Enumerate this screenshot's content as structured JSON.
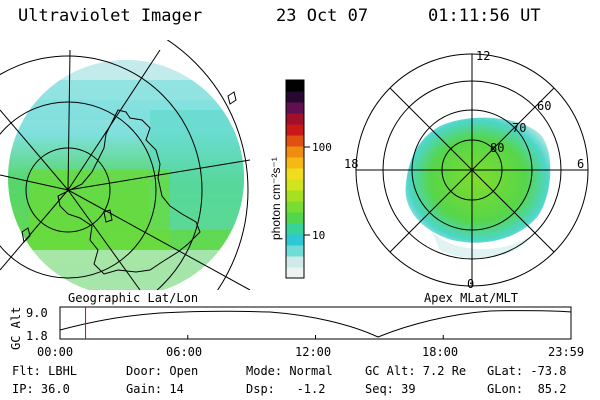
{
  "header": {
    "title": "Ultraviolet Imager",
    "date": "23 Oct 07",
    "time": "01:11:56 UT"
  },
  "left_panel": {
    "caption": "Geographic Lat/Lon"
  },
  "colorbar": {
    "unit_label": "photon cm⁻²s⁻¹",
    "ticks": [
      "100",
      "10"
    ],
    "colors": [
      "#eef2f2",
      "#cfeae8",
      "#6fdcd8",
      "#2ec8d4",
      "#37d39a",
      "#52d64d",
      "#79dc33",
      "#a6e022",
      "#d2e41e",
      "#f2dc1e",
      "#f6b814",
      "#f08c10",
      "#e05010",
      "#c81818",
      "#a0102a",
      "#601050",
      "#280830",
      "#000000"
    ]
  },
  "right_panel": {
    "caption": "Apex MLat/MLT",
    "mlt_labels": {
      "top": "12",
      "bottom": "0",
      "left": "18",
      "right": "6"
    },
    "mlat_labels": [
      "60",
      "70",
      "80"
    ]
  },
  "timeline": {
    "y_label": "GC Alt",
    "y_ticks": [
      "9.0",
      "1.8"
    ],
    "x_ticks": [
      "00:00",
      "06:00",
      "12:00",
      "18:00",
      "23:59"
    ],
    "marker_fraction": 0.05
  },
  "footer": {
    "rows": [
      [
        "Flt: LBHL",
        "Door: Open",
        "Mode: Normal",
        "GC Alt: 7.2 Re",
        "GLat: -73.8"
      ],
      [
        "IP: 36.0",
        "Gain: 14",
        "Dsp:   -1.2",
        "Seq: 39",
        "GLon:  85.2"
      ]
    ]
  }
}
